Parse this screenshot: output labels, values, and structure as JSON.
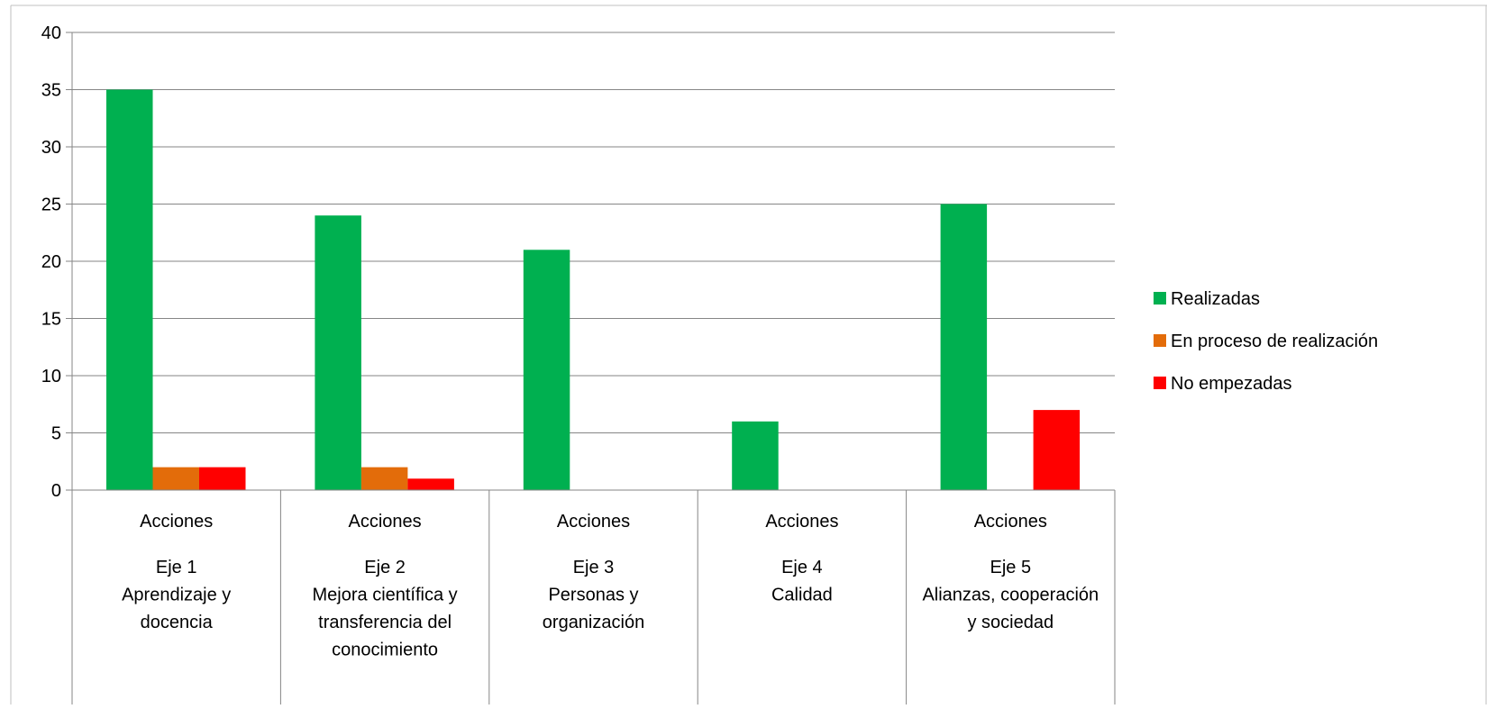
{
  "chart_data": {
    "type": "bar",
    "title": "",
    "xlabel": "",
    "ylabel": "",
    "ylim": [
      0,
      40
    ],
    "yticks": [
      "0",
      "5",
      "10",
      "15",
      "20",
      "25",
      "30",
      "35",
      "40"
    ],
    "grid": true,
    "legend_position": "right",
    "categories": [
      {
        "top": "Acciones",
        "lines": [
          "Eje 1",
          "Aprendizaje y",
          "docencia"
        ]
      },
      {
        "top": "Acciones",
        "lines": [
          "Eje 2",
          "Mejora científica y",
          "transferencia del",
          "conocimiento"
        ]
      },
      {
        "top": "Acciones",
        "lines": [
          "Eje 3",
          "Personas y",
          "organización"
        ]
      },
      {
        "top": "Acciones",
        "lines": [
          "Eje 4",
          "Calidad"
        ]
      },
      {
        "top": "Acciones",
        "lines": [
          "Eje 5",
          "Alianzas, cooperación",
          "y sociedad"
        ]
      }
    ],
    "series": [
      {
        "name": "Realizadas",
        "color": "#00B050",
        "values": [
          35,
          24,
          21,
          6,
          25
        ]
      },
      {
        "name": "En proceso de realización",
        "color": "#E36C0A",
        "values": [
          2,
          2,
          0,
          0,
          0
        ]
      },
      {
        "name": "No empezadas",
        "color": "#FF0000",
        "values": [
          2,
          1,
          0,
          0,
          7
        ]
      }
    ]
  }
}
